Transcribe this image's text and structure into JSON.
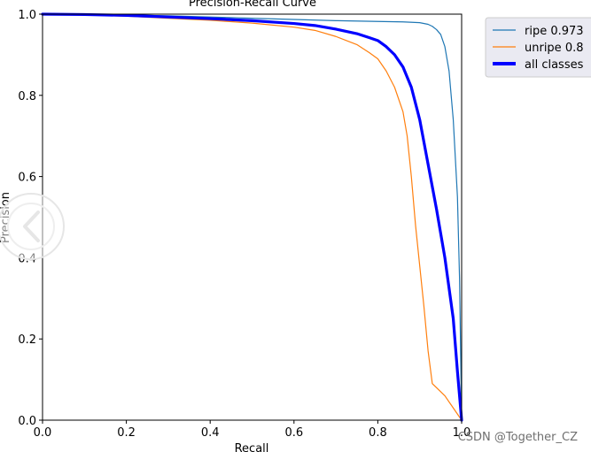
{
  "chart_data": {
    "type": "line",
    "title": "Precision-Recall Curve",
    "xlabel": "Recall",
    "ylabel": "Precision",
    "xlim": [
      0,
      1
    ],
    "ylim": [
      0,
      1
    ],
    "x_ticks": [
      "0.0",
      "0.2",
      "0.4",
      "0.6",
      "0.8",
      "1.0"
    ],
    "y_ticks": [
      "0.0",
      "0.2",
      "0.4",
      "0.6",
      "0.8",
      "1.0"
    ],
    "grid": false,
    "legend_position": "outside-top-right",
    "series": [
      {
        "name": "ripe 0.973",
        "color": "#1f77b4",
        "line_weight": "thin",
        "points": [
          [
            0,
            1.0
          ],
          [
            0.1,
            0.999
          ],
          [
            0.2,
            0.998
          ],
          [
            0.3,
            0.996
          ],
          [
            0.4,
            0.993
          ],
          [
            0.5,
            0.99
          ],
          [
            0.6,
            0.987
          ],
          [
            0.7,
            0.984
          ],
          [
            0.8,
            0.982
          ],
          [
            0.86,
            0.981
          ],
          [
            0.9,
            0.979
          ],
          [
            0.92,
            0.975
          ],
          [
            0.93,
            0.97
          ],
          [
            0.94,
            0.962
          ],
          [
            0.95,
            0.95
          ],
          [
            0.96,
            0.92
          ],
          [
            0.97,
            0.86
          ],
          [
            0.98,
            0.74
          ],
          [
            0.99,
            0.55
          ],
          [
            0.995,
            0.35
          ],
          [
            1.0,
            0.0
          ]
        ]
      },
      {
        "name": "unripe 0.8",
        "color": "#ff7f0e",
        "line_weight": "thin",
        "points": [
          [
            0,
            1.0
          ],
          [
            0.1,
            0.998
          ],
          [
            0.2,
            0.995
          ],
          [
            0.3,
            0.99
          ],
          [
            0.4,
            0.985
          ],
          [
            0.5,
            0.978
          ],
          [
            0.6,
            0.968
          ],
          [
            0.65,
            0.96
          ],
          [
            0.7,
            0.945
          ],
          [
            0.75,
            0.925
          ],
          [
            0.78,
            0.905
          ],
          [
            0.8,
            0.89
          ],
          [
            0.82,
            0.86
          ],
          [
            0.84,
            0.82
          ],
          [
            0.86,
            0.76
          ],
          [
            0.87,
            0.7
          ],
          [
            0.88,
            0.6
          ],
          [
            0.89,
            0.48
          ],
          [
            0.9,
            0.38
          ],
          [
            0.91,
            0.28
          ],
          [
            0.92,
            0.17
          ],
          [
            0.93,
            0.09
          ],
          [
            0.96,
            0.06
          ],
          [
            1.0,
            0.0
          ]
        ]
      },
      {
        "name": "all classes",
        "color": "#0000ff",
        "line_weight": "thick",
        "points": [
          [
            0,
            1.0
          ],
          [
            0.1,
            0.999
          ],
          [
            0.2,
            0.997
          ],
          [
            0.3,
            0.993
          ],
          [
            0.4,
            0.989
          ],
          [
            0.5,
            0.984
          ],
          [
            0.6,
            0.977
          ],
          [
            0.65,
            0.972
          ],
          [
            0.7,
            0.963
          ],
          [
            0.75,
            0.952
          ],
          [
            0.78,
            0.942
          ],
          [
            0.8,
            0.935
          ],
          [
            0.82,
            0.92
          ],
          [
            0.84,
            0.9
          ],
          [
            0.86,
            0.87
          ],
          [
            0.88,
            0.82
          ],
          [
            0.9,
            0.74
          ],
          [
            0.92,
            0.63
          ],
          [
            0.94,
            0.52
          ],
          [
            0.96,
            0.4
          ],
          [
            0.98,
            0.25
          ],
          [
            0.99,
            0.12
          ],
          [
            1.0,
            0.0
          ]
        ]
      }
    ]
  },
  "watermark": {
    "text": "CSDN @Together_CZ"
  }
}
